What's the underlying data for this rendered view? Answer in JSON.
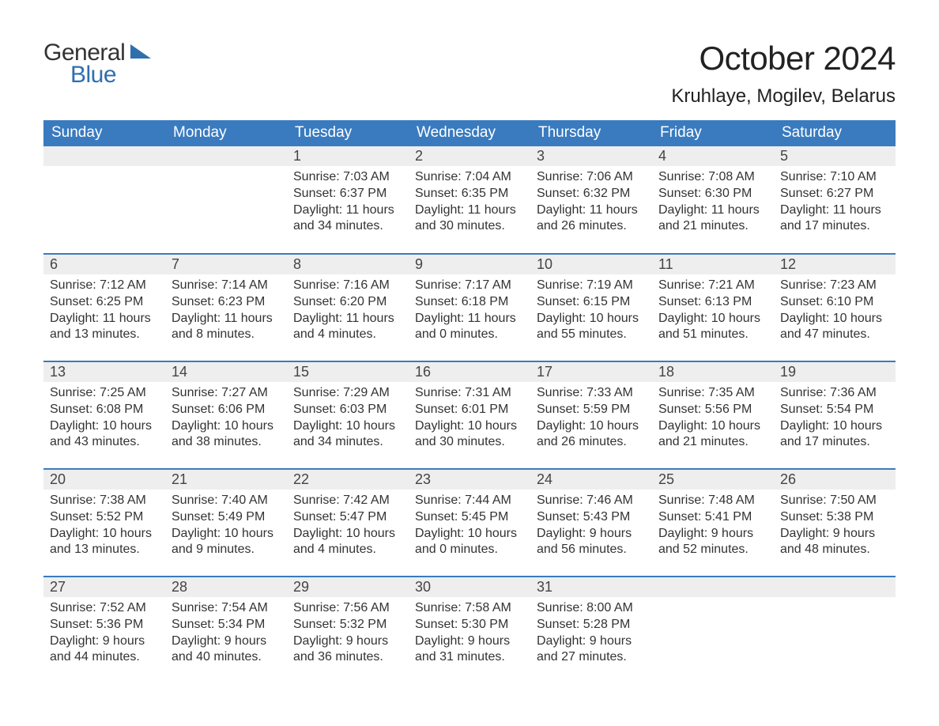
{
  "logo": {
    "word1": "General",
    "word2": "Blue",
    "color1": "#333333",
    "color2": "#2f6fae"
  },
  "title": "October 2024",
  "location": "Kruhlaye, Mogilev, Belarus",
  "theme": {
    "header_bg": "#3a7bbf",
    "header_fg": "#ffffff",
    "daynum_bg": "#eeeeee",
    "rule_color": "#3a7bbf",
    "body_bg": "#ffffff",
    "text_color": "#333333",
    "title_fontsize": 42,
    "location_fontsize": 24,
    "header_fontsize": 19,
    "daynum_fontsize": 18,
    "data_fontsize": 16
  },
  "weekdays": [
    "Sunday",
    "Monday",
    "Tuesday",
    "Wednesday",
    "Thursday",
    "Friday",
    "Saturday"
  ],
  "labels": {
    "sunrise": "Sunrise:",
    "sunset": "Sunset:",
    "daylight": "Daylight:"
  },
  "weeks": [
    [
      null,
      null,
      {
        "n": "1",
        "sunrise": "7:03 AM",
        "sunset": "6:37 PM",
        "daylight": "11 hours and 34 minutes."
      },
      {
        "n": "2",
        "sunrise": "7:04 AM",
        "sunset": "6:35 PM",
        "daylight": "11 hours and 30 minutes."
      },
      {
        "n": "3",
        "sunrise": "7:06 AM",
        "sunset": "6:32 PM",
        "daylight": "11 hours and 26 minutes."
      },
      {
        "n": "4",
        "sunrise": "7:08 AM",
        "sunset": "6:30 PM",
        "daylight": "11 hours and 21 minutes."
      },
      {
        "n": "5",
        "sunrise": "7:10 AM",
        "sunset": "6:27 PM",
        "daylight": "11 hours and 17 minutes."
      }
    ],
    [
      {
        "n": "6",
        "sunrise": "7:12 AM",
        "sunset": "6:25 PM",
        "daylight": "11 hours and 13 minutes."
      },
      {
        "n": "7",
        "sunrise": "7:14 AM",
        "sunset": "6:23 PM",
        "daylight": "11 hours and 8 minutes."
      },
      {
        "n": "8",
        "sunrise": "7:16 AM",
        "sunset": "6:20 PM",
        "daylight": "11 hours and 4 minutes."
      },
      {
        "n": "9",
        "sunrise": "7:17 AM",
        "sunset": "6:18 PM",
        "daylight": "11 hours and 0 minutes."
      },
      {
        "n": "10",
        "sunrise": "7:19 AM",
        "sunset": "6:15 PM",
        "daylight": "10 hours and 55 minutes."
      },
      {
        "n": "11",
        "sunrise": "7:21 AM",
        "sunset": "6:13 PM",
        "daylight": "10 hours and 51 minutes."
      },
      {
        "n": "12",
        "sunrise": "7:23 AM",
        "sunset": "6:10 PM",
        "daylight": "10 hours and 47 minutes."
      }
    ],
    [
      {
        "n": "13",
        "sunrise": "7:25 AM",
        "sunset": "6:08 PM",
        "daylight": "10 hours and 43 minutes."
      },
      {
        "n": "14",
        "sunrise": "7:27 AM",
        "sunset": "6:06 PM",
        "daylight": "10 hours and 38 minutes."
      },
      {
        "n": "15",
        "sunrise": "7:29 AM",
        "sunset": "6:03 PM",
        "daylight": "10 hours and 34 minutes."
      },
      {
        "n": "16",
        "sunrise": "7:31 AM",
        "sunset": "6:01 PM",
        "daylight": "10 hours and 30 minutes."
      },
      {
        "n": "17",
        "sunrise": "7:33 AM",
        "sunset": "5:59 PM",
        "daylight": "10 hours and 26 minutes."
      },
      {
        "n": "18",
        "sunrise": "7:35 AM",
        "sunset": "5:56 PM",
        "daylight": "10 hours and 21 minutes."
      },
      {
        "n": "19",
        "sunrise": "7:36 AM",
        "sunset": "5:54 PM",
        "daylight": "10 hours and 17 minutes."
      }
    ],
    [
      {
        "n": "20",
        "sunrise": "7:38 AM",
        "sunset": "5:52 PM",
        "daylight": "10 hours and 13 minutes."
      },
      {
        "n": "21",
        "sunrise": "7:40 AM",
        "sunset": "5:49 PM",
        "daylight": "10 hours and 9 minutes."
      },
      {
        "n": "22",
        "sunrise": "7:42 AM",
        "sunset": "5:47 PM",
        "daylight": "10 hours and 4 minutes."
      },
      {
        "n": "23",
        "sunrise": "7:44 AM",
        "sunset": "5:45 PM",
        "daylight": "10 hours and 0 minutes."
      },
      {
        "n": "24",
        "sunrise": "7:46 AM",
        "sunset": "5:43 PM",
        "daylight": "9 hours and 56 minutes."
      },
      {
        "n": "25",
        "sunrise": "7:48 AM",
        "sunset": "5:41 PM",
        "daylight": "9 hours and 52 minutes."
      },
      {
        "n": "26",
        "sunrise": "7:50 AM",
        "sunset": "5:38 PM",
        "daylight": "9 hours and 48 minutes."
      }
    ],
    [
      {
        "n": "27",
        "sunrise": "7:52 AM",
        "sunset": "5:36 PM",
        "daylight": "9 hours and 44 minutes."
      },
      {
        "n": "28",
        "sunrise": "7:54 AM",
        "sunset": "5:34 PM",
        "daylight": "9 hours and 40 minutes."
      },
      {
        "n": "29",
        "sunrise": "7:56 AM",
        "sunset": "5:32 PM",
        "daylight": "9 hours and 36 minutes."
      },
      {
        "n": "30",
        "sunrise": "7:58 AM",
        "sunset": "5:30 PM",
        "daylight": "9 hours and 31 minutes."
      },
      {
        "n": "31",
        "sunrise": "8:00 AM",
        "sunset": "5:28 PM",
        "daylight": "9 hours and 27 minutes."
      },
      null,
      null
    ]
  ]
}
